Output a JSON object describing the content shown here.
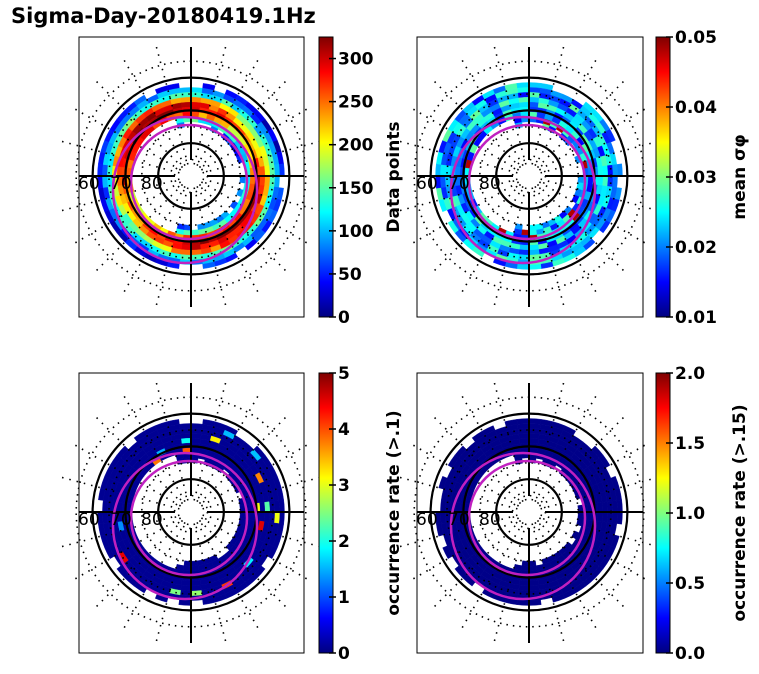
{
  "figure": {
    "title": "Sigma-Day-20180419.1Hz"
  },
  "chart_data": [
    {
      "type": "heatmap",
      "projection": "polar (magnetic latitude / MLT)",
      "title": "",
      "lat_labels": [
        "60",
        "70",
        "80"
      ],
      "colormap": "jet",
      "colorbar": {
        "label": "Data points",
        "range": [
          0,
          325
        ],
        "ticks": [
          0,
          50,
          100,
          150,
          200,
          250,
          300
        ]
      },
      "description": "Annular band of coverage between ~60 and ~75 deg latitude; highest counts (250-320) on dawn/dusk flanks",
      "bins_sample": [
        {
          "mlat_range": [
            62,
            66
          ],
          "value": 60
        },
        {
          "mlat_range": [
            66,
            70
          ],
          "value": 170
        },
        {
          "mlat_range": [
            70,
            73
          ],
          "value": 230
        },
        {
          "mlat_range": [
            73,
            76
          ],
          "value": 90
        }
      ]
    },
    {
      "type": "heatmap",
      "projection": "polar (magnetic latitude / MLT)",
      "lat_labels": [
        "60",
        "70",
        "80"
      ],
      "colormap": "jet",
      "colorbar": {
        "label": "mean σφ",
        "range": [
          0.01,
          0.05
        ],
        "ticks": [
          "0.01",
          "0.02",
          "0.03",
          "0.04",
          "0.05"
        ]
      },
      "description": "Mostly 0.02-0.03 with localized maxima (~0.05) near the auroral oval equatorward edge",
      "bins_sample": [
        {
          "mlat_range": [
            62,
            66
          ],
          "value": 0.024
        },
        {
          "mlat_range": [
            66,
            70
          ],
          "value": 0.022
        },
        {
          "mlat_range": [
            70,
            73
          ],
          "value": 0.028
        },
        {
          "mlat_range": [
            73,
            76
          ],
          "value": 0.026
        }
      ]
    },
    {
      "type": "heatmap",
      "projection": "polar (magnetic latitude / MLT)",
      "lat_labels": [
        "60",
        "70",
        "80"
      ],
      "colormap": "jet",
      "colorbar": {
        "label": "occurrence rate (>.1)",
        "range": [
          0,
          5
        ],
        "ticks": [
          "0",
          "1",
          "2",
          "3",
          "4",
          "5"
        ]
      },
      "description": "Nearly all bins ~0 with a few isolated bins up to ~5",
      "bins_sample": [
        {
          "mlat_range": [
            62,
            76
          ],
          "value": 0.05
        }
      ]
    },
    {
      "type": "heatmap",
      "projection": "polar (magnetic latitude / MLT)",
      "lat_labels": [
        "60",
        "70",
        "80"
      ],
      "colormap": "jet",
      "colorbar": {
        "label": "occurrence rate (>.15)",
        "range": [
          0.0,
          2.0
        ],
        "ticks": [
          "0.0",
          "0.5",
          "1.0",
          "1.5",
          "2.0"
        ]
      },
      "description": "All bins ~0",
      "bins_sample": [
        {
          "mlat_range": [
            62,
            76
          ],
          "value": 0.0
        }
      ]
    }
  ],
  "colors": {
    "oval": "#c020c0",
    "grid": "#000000",
    "jet_stops": [
      "#00007f",
      "#0000ff",
      "#007fff",
      "#00ffff",
      "#7fff7f",
      "#ffff00",
      "#ff7f00",
      "#ff0000",
      "#7f0000"
    ]
  }
}
